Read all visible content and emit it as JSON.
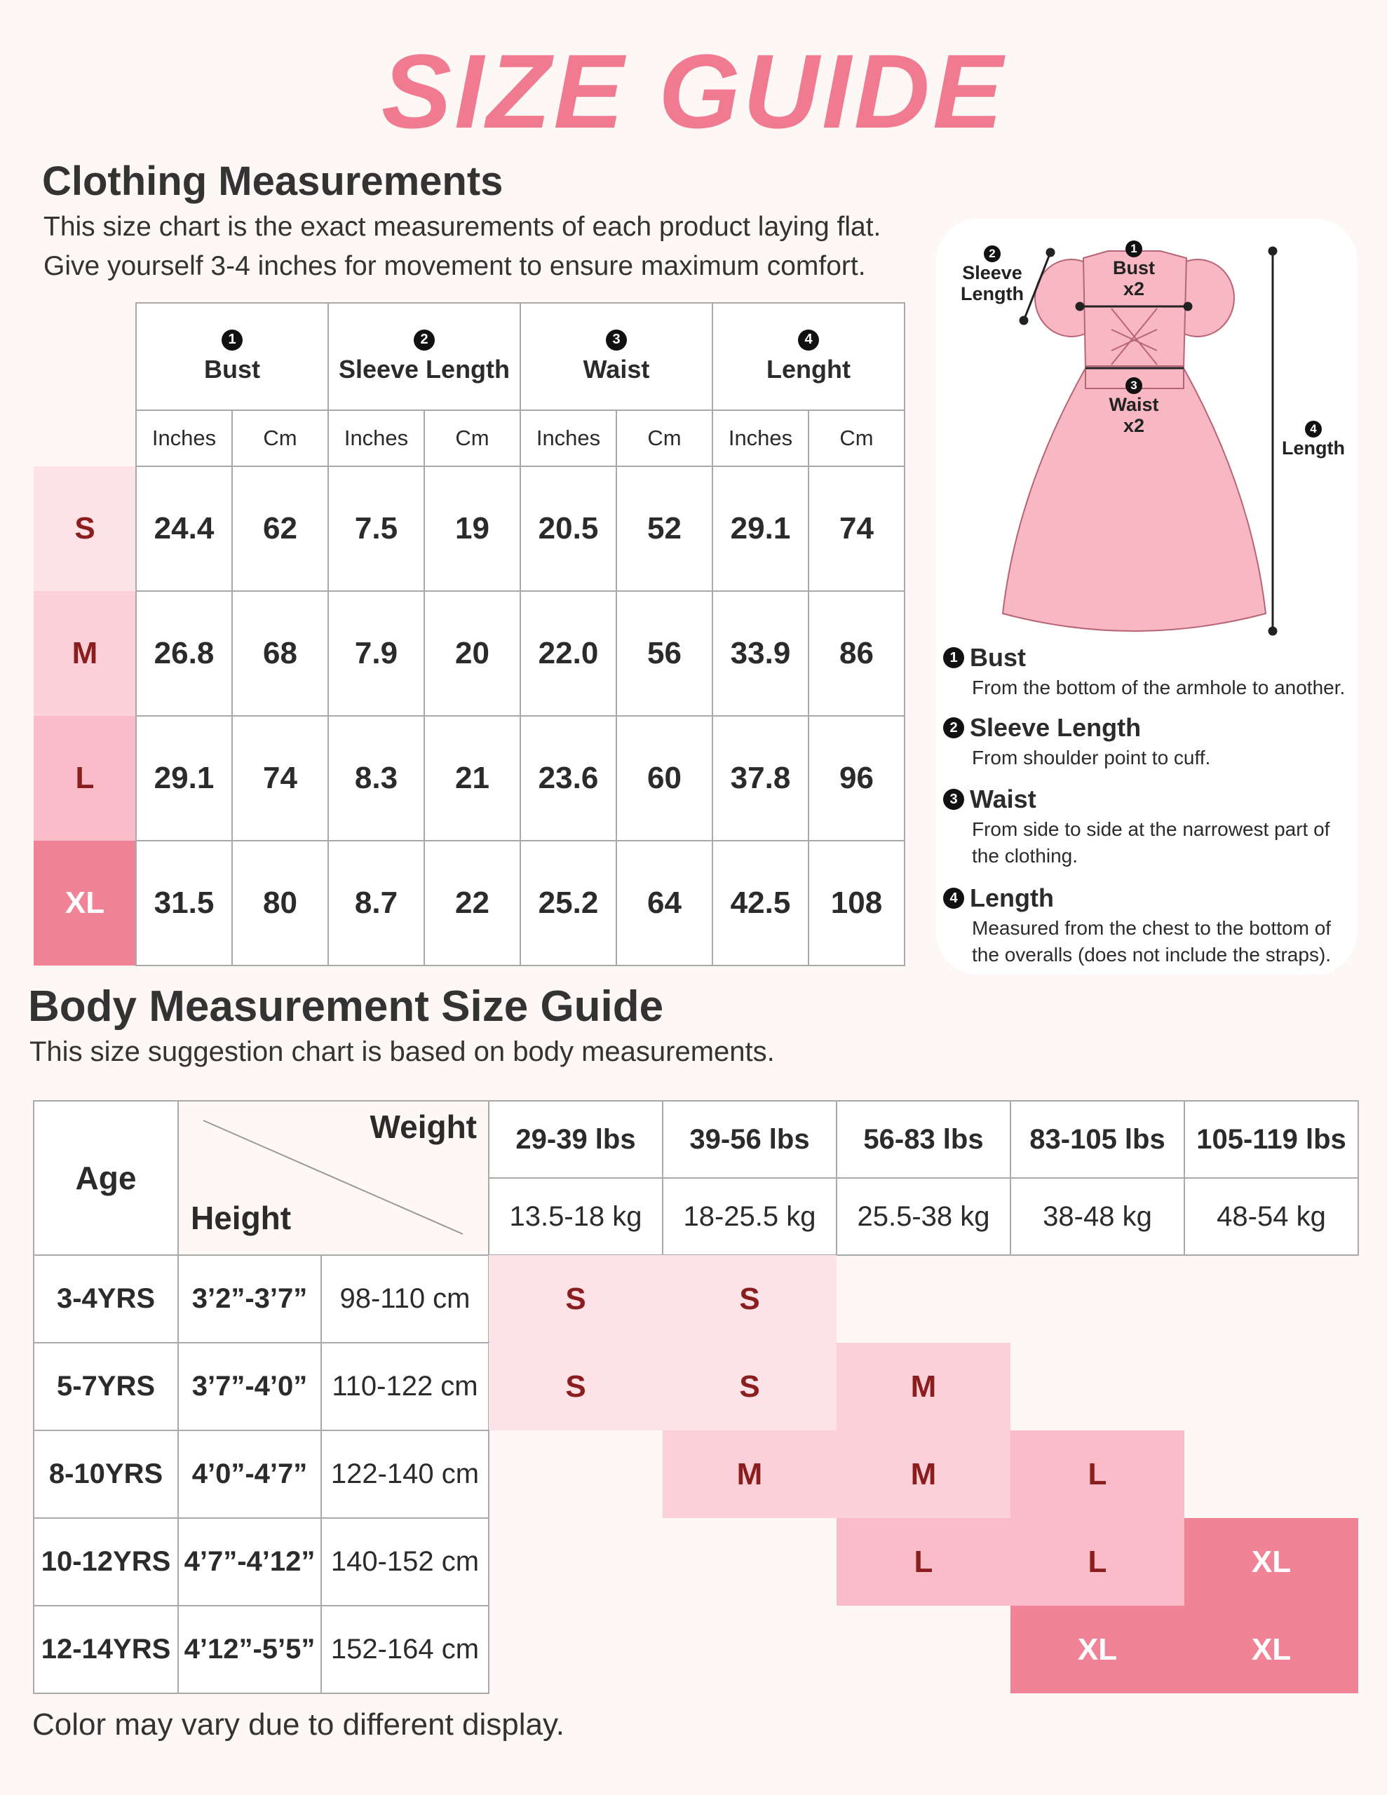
{
  "header": {
    "title": "SIZE GUIDE"
  },
  "clothing": {
    "title": "Clothing Measurements",
    "description": [
      "This size chart is the exact measurements of each product laying flat.",
      "Give yourself 3-4 inches for movement to ensure maximum comfort."
    ],
    "columns": [
      {
        "number": "1",
        "name": "Bust"
      },
      {
        "number": "2",
        "name": "Sleeve Length"
      },
      {
        "number": "3",
        "name": "Waist"
      },
      {
        "number": "4",
        "name": "Lenght"
      }
    ],
    "units": [
      "Inches",
      "Cm"
    ],
    "rows": [
      {
        "size": "S",
        "color": "#fde3e8",
        "text_color": "#8a1d1d",
        "values": [
          "24.4",
          "62",
          "7.5",
          "19",
          "20.5",
          "52",
          "29.1",
          "74"
        ]
      },
      {
        "size": "M",
        "color": "#fbd0d9",
        "text_color": "#8a1d1d",
        "values": [
          "26.8",
          "68",
          "7.9",
          "20",
          "22.0",
          "56",
          "33.9",
          "86"
        ]
      },
      {
        "size": "L",
        "color": "#f9bcc8",
        "text_color": "#8a1d1d",
        "values": [
          "29.1",
          "74",
          "8.3",
          "21",
          "23.6",
          "60",
          "37.8",
          "96"
        ]
      },
      {
        "size": "XL",
        "color": "#f08496",
        "text_color": "#ffffff",
        "values": [
          "31.5",
          "80",
          "8.7",
          "22",
          "25.2",
          "64",
          "42.5",
          "108"
        ]
      }
    ]
  },
  "diagram": {
    "labels": [
      {
        "number": "2",
        "lines": [
          "Sleeve",
          "Length"
        ]
      },
      {
        "number": "1",
        "lines": [
          "Bust",
          "x2"
        ]
      },
      {
        "number": "3",
        "lines": [
          "Waist",
          "x2"
        ]
      },
      {
        "number": "4",
        "lines": [
          "Length"
        ]
      }
    ]
  },
  "definitions": [
    {
      "number": "1",
      "term": "Bust",
      "text": "From the bottom of the armhole to another."
    },
    {
      "number": "2",
      "term": "Sleeve Length",
      "text": "From shoulder point to cuff."
    },
    {
      "number": "3",
      "term": "Waist",
      "text": "From side to side at the narrowest part of the clothing."
    },
    {
      "number": "4",
      "term": "Length",
      "text": "Measured from the chest to the bottom of the overalls (does not include the straps)."
    }
  ],
  "body": {
    "title": "Body Measurement Size Guide",
    "subtitle": "This size suggestion chart is based on body measurements.",
    "headers": {
      "age": "Age",
      "weight": "Weight",
      "height": "Height"
    },
    "weights": [
      {
        "lbs": "29-39 lbs",
        "kg": "13.5-18 kg"
      },
      {
        "lbs": "39-56 lbs",
        "kg": "18-25.5 kg"
      },
      {
        "lbs": "56-83 lbs",
        "kg": "25.5-38 kg"
      },
      {
        "lbs": "83-105 lbs",
        "kg": "38-48 kg"
      },
      {
        "lbs": "105-119 lbs",
        "kg": "48-54 kg"
      }
    ],
    "rows": [
      {
        "age": "3-4YRS",
        "height_ft": "3’2”-3’7”",
        "height_cm": "98-110 cm",
        "sizes": [
          "S",
          "S",
          null,
          null,
          null
        ]
      },
      {
        "age": "5-7YRS",
        "height_ft": "3’7”-4’0”",
        "height_cm": "110-122 cm",
        "sizes": [
          "S",
          "S",
          "M",
          null,
          null
        ]
      },
      {
        "age": "8-10YRS",
        "height_ft": "4’0”-4’7”",
        "height_cm": "122-140 cm",
        "sizes": [
          null,
          "M",
          "M",
          "L",
          null
        ]
      },
      {
        "age": "10-12YRS",
        "height_ft": "4’7”-4’12”",
        "height_cm": "140-152 cm",
        "sizes": [
          null,
          null,
          "L",
          "L",
          "XL"
        ]
      },
      {
        "age": "12-14YRS",
        "height_ft": "4’12”-5’5”",
        "height_cm": "152-164 cm",
        "sizes": [
          null,
          null,
          null,
          "XL",
          "XL"
        ]
      }
    ]
  },
  "footer": {
    "note": "Color may vary due to different display."
  }
}
